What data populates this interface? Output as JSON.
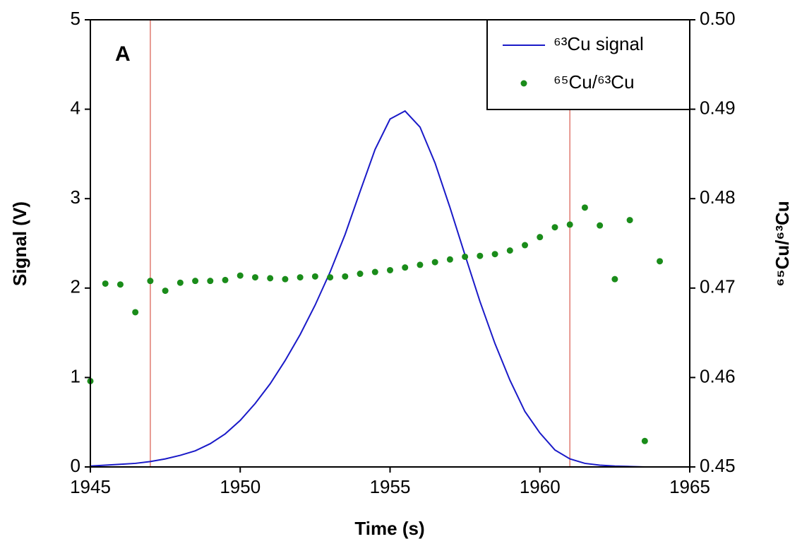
{
  "chart_data": {
    "type": "line+scatter",
    "panel_label": "A",
    "xlabel": "Time (s)",
    "ylabel": "Signal (V)",
    "y2label": "⁶⁵Cu/⁶³Cu",
    "xlim": [
      1945,
      1965
    ],
    "xticks": [
      1945,
      1950,
      1955,
      1960,
      1965
    ],
    "ylim": [
      0,
      5
    ],
    "yticks": [
      0,
      1,
      2,
      3,
      4,
      5
    ],
    "y2lim": [
      0.45,
      0.5
    ],
    "y2ticks": [
      0.45,
      0.46,
      0.47,
      0.48,
      0.49,
      {
        "value": 0.5,
        "label": "0.50"
      }
    ],
    "vlines": [
      1947,
      1961
    ],
    "vline_color": "#e07a70",
    "legend": "upper right",
    "series": [
      {
        "name": "⁶³Cu signal",
        "color": "#1a1ac8",
        "style": "line",
        "x": [
          1945,
          1945.5,
          1946,
          1946.5,
          1947,
          1947.5,
          1948,
          1948.5,
          1949,
          1949.5,
          1950,
          1950.5,
          1951,
          1951.5,
          1952,
          1952.5,
          1953,
          1953.5,
          1954,
          1954.5,
          1955,
          1955.5,
          1956,
          1956.5,
          1957,
          1957.5,
          1958,
          1958.5,
          1959,
          1959.5,
          1960,
          1960.5,
          1961,
          1961.5,
          1962,
          1962.5,
          1963,
          1963.5,
          1964,
          1964.5,
          1965
        ],
        "values": [
          0.01,
          0.02,
          0.03,
          0.04,
          0.06,
          0.09,
          0.13,
          0.18,
          0.26,
          0.37,
          0.52,
          0.71,
          0.93,
          1.19,
          1.48,
          1.81,
          2.18,
          2.6,
          3.08,
          3.55,
          3.89,
          3.98,
          3.8,
          3.4,
          2.9,
          2.37,
          1.85,
          1.38,
          0.97,
          0.62,
          0.38,
          0.19,
          0.09,
          0.04,
          0.02,
          0.01,
          0.005,
          0,
          0,
          0,
          0
        ]
      },
      {
        "name": "⁶⁵Cu/⁶³Cu",
        "color": "#1a8c1a",
        "style": "dots",
        "axis": "y2",
        "x": [
          1945,
          1945.5,
          1946,
          1946.5,
          1947,
          1947.5,
          1948,
          1948.5,
          1949,
          1949.5,
          1950,
          1950.5,
          1951,
          1951.5,
          1952,
          1952.5,
          1953,
          1953.5,
          1954,
          1954.5,
          1955,
          1955.5,
          1956,
          1956.5,
          1957,
          1957.5,
          1958,
          1958.5,
          1959,
          1959.5,
          1960,
          1960.5,
          1961,
          1961.5,
          1962,
          1962.5,
          1963,
          1963.5,
          1964
        ],
        "values": [
          0.4596,
          0.4705,
          0.4704,
          0.4673,
          0.4708,
          0.4697,
          0.4706,
          0.4708,
          0.4708,
          0.4709,
          0.4714,
          0.4712,
          0.4711,
          0.471,
          0.4712,
          0.4713,
          0.4712,
          0.4713,
          0.4716,
          0.4718,
          0.472,
          0.4723,
          0.4726,
          0.4729,
          0.4732,
          0.4735,
          0.4736,
          0.4738,
          0.4742,
          0.4748,
          0.4757,
          0.4768,
          0.4771,
          0.479,
          0.477,
          0.471,
          0.4776,
          0.4529,
          0.473
        ]
      }
    ]
  }
}
